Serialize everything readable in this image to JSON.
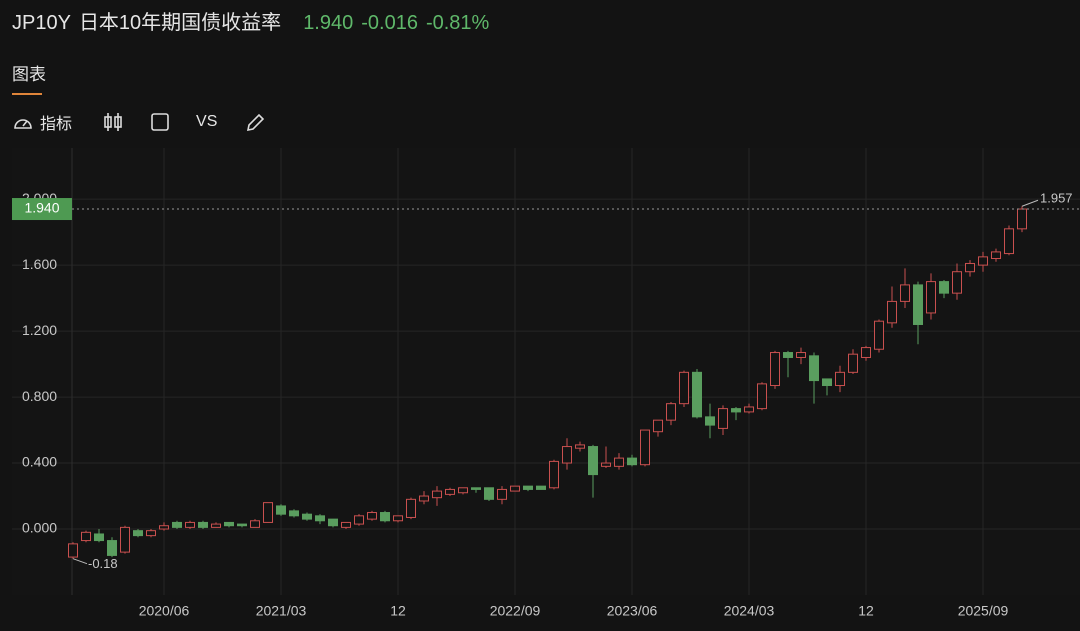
{
  "header": {
    "symbol": "JP10Y",
    "name": "日本10年期国债收益率",
    "price": "1.940",
    "change": "-0.016",
    "change_pct": "-0.81%"
  },
  "ui": {
    "tab": "图表",
    "indicators": "指标",
    "compare": "VS"
  },
  "chart_data": {
    "type": "candlestick",
    "categories": [
      null,
      null,
      null,
      null,
      null,
      null,
      null,
      "2020/06",
      null,
      null,
      null,
      null,
      null,
      null,
      null,
      null,
      "2021/03",
      null,
      null,
      null,
      null,
      null,
      null,
      null,
      null,
      "12",
      null,
      null,
      null,
      null,
      null,
      null,
      null,
      null,
      "2022/09",
      null,
      null,
      null,
      null,
      null,
      null,
      null,
      null,
      "2023/06",
      null,
      null,
      null,
      null,
      null,
      null,
      null,
      null,
      "2024/03",
      null,
      null,
      null,
      null,
      null,
      null,
      null,
      null,
      "12",
      null,
      null,
      null,
      null,
      null,
      null,
      null,
      null,
      "2025/09",
      null,
      null,
      null
    ],
    "open": [
      -0.17,
      -0.07,
      -0.03,
      -0.07,
      -0.14,
      -0.01,
      -0.04,
      0.0,
      0.04,
      0.01,
      0.04,
      0.01,
      0.04,
      0.03,
      0.01,
      0.04,
      0.14,
      0.11,
      0.09,
      0.08,
      0.06,
      0.01,
      0.03,
      0.06,
      0.1,
      0.05,
      0.07,
      0.17,
      0.19,
      0.21,
      0.22,
      0.25,
      0.25,
      0.18,
      0.23,
      0.26,
      0.26,
      0.25,
      0.4,
      0.49,
      0.5,
      0.38,
      0.38,
      0.43,
      0.39,
      0.59,
      0.66,
      0.76,
      0.95,
      0.68,
      0.61,
      0.73,
      0.71,
      0.73,
      0.87,
      1.07,
      1.04,
      1.05,
      0.91,
      0.87,
      0.95,
      1.04,
      1.09,
      1.25,
      1.38,
      1.48,
      1.31,
      1.5,
      1.43,
      1.56,
      1.6,
      1.64,
      1.67,
      1.82
    ],
    "high": [
      -0.08,
      -0.01,
      0.0,
      -0.05,
      0.02,
      0.0,
      0.0,
      0.04,
      0.05,
      0.05,
      0.05,
      0.04,
      0.04,
      0.03,
      0.06,
      0.16,
      0.15,
      0.12,
      0.1,
      0.09,
      0.06,
      0.04,
      0.09,
      0.11,
      0.11,
      0.08,
      0.19,
      0.23,
      0.26,
      0.25,
      0.25,
      0.25,
      0.25,
      0.26,
      0.26,
      0.26,
      0.26,
      0.42,
      0.55,
      0.53,
      0.51,
      0.5,
      0.46,
      0.45,
      0.6,
      0.66,
      0.77,
      0.96,
      0.97,
      0.76,
      0.75,
      0.74,
      0.76,
      0.89,
      1.08,
      1.08,
      1.1,
      1.07,
      0.91,
      0.99,
      1.09,
      1.11,
      1.27,
      1.47,
      1.58,
      1.5,
      1.55,
      1.51,
      1.61,
      1.63,
      1.68,
      1.7,
      1.84,
      1.957
    ],
    "low": [
      -0.18,
      -0.08,
      -0.08,
      -0.17,
      -0.149,
      -0.05,
      -0.05,
      -0.01,
      0.0,
      0.0,
      0.0,
      0.01,
      0.01,
      0.01,
      0.01,
      0.04,
      0.08,
      0.07,
      0.05,
      0.03,
      0.01,
      0.0,
      0.02,
      0.05,
      0.04,
      0.04,
      0.06,
      0.15,
      0.14,
      0.2,
      0.21,
      0.22,
      0.17,
      0.15,
      0.23,
      0.23,
      0.24,
      0.24,
      0.36,
      0.47,
      0.19,
      0.37,
      0.36,
      0.38,
      0.38,
      0.56,
      0.63,
      0.74,
      0.67,
      0.55,
      0.57,
      0.66,
      0.7,
      0.72,
      0.85,
      0.92,
      1.0,
      0.76,
      0.81,
      0.83,
      0.94,
      1.02,
      1.07,
      1.22,
      1.34,
      1.12,
      1.27,
      1.4,
      1.39,
      1.53,
      1.56,
      1.62,
      1.66,
      1.8
    ],
    "close": [
      -0.09,
      -0.02,
      -0.07,
      -0.16,
      0.01,
      -0.04,
      -0.01,
      0.02,
      0.01,
      0.04,
      0.01,
      0.03,
      0.02,
      0.02,
      0.05,
      0.16,
      0.09,
      0.08,
      0.06,
      0.05,
      0.02,
      0.04,
      0.08,
      0.1,
      0.05,
      0.08,
      0.18,
      0.2,
      0.23,
      0.24,
      0.25,
      0.24,
      0.18,
      0.24,
      0.26,
      0.24,
      0.24,
      0.41,
      0.5,
      0.51,
      0.33,
      0.4,
      0.43,
      0.39,
      0.6,
      0.66,
      0.76,
      0.95,
      0.68,
      0.63,
      0.73,
      0.71,
      0.74,
      0.88,
      1.07,
      1.04,
      1.07,
      0.9,
      0.87,
      0.95,
      1.06,
      1.1,
      1.26,
      1.38,
      1.48,
      1.24,
      1.5,
      1.43,
      1.56,
      1.61,
      1.65,
      1.68,
      1.82,
      1.94
    ],
    "up_color": "#c9504f",
    "down_color": "#5a9e5f",
    "last_price": {
      "value": 1.94,
      "label": "1.940"
    },
    "ylim": [
      -0.4,
      2.31
    ],
    "yticks": [
      {
        "value": 0,
        "label": "0.000"
      },
      {
        "value": 0.4,
        "label": "0.400"
      },
      {
        "value": 0.8,
        "label": "0.800"
      },
      {
        "value": 1.2,
        "label": "1.200"
      },
      {
        "value": 1.6,
        "label": "1.600"
      },
      {
        "value": 2,
        "label": "2.000"
      }
    ],
    "grid": true
  }
}
